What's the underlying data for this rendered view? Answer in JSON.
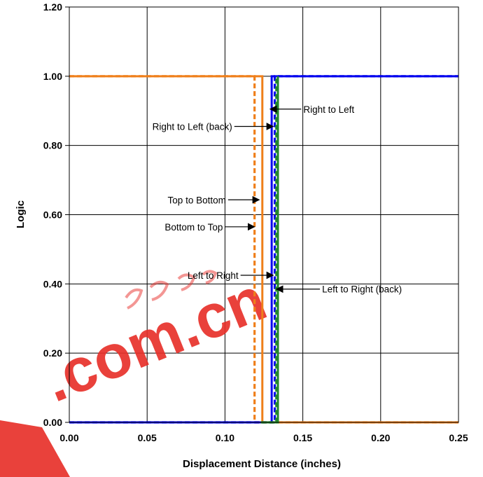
{
  "chart_data": {
    "type": "line",
    "title": "",
    "xlabel": "Displacement Distance (inches)",
    "ylabel": "Logic",
    "xlim": [
      0,
      0.25
    ],
    "ylim": [
      0,
      1.2
    ],
    "x_ticks": [
      "0.00",
      "0.05",
      "0.10",
      "0.15",
      "0.20",
      "0.25"
    ],
    "y_ticks": [
      "0.00",
      "0.20",
      "0.40",
      "0.60",
      "0.80",
      "1.00",
      "1.20"
    ],
    "grid": true,
    "legend": "none",
    "series": [
      {
        "color": "#ef7f1a",
        "dash": "dashed",
        "transition_x": 0.119,
        "x_end": 0.25,
        "falling": true
      },
      {
        "color": "#ef7f1a",
        "dash": "solid",
        "transition_x": 0.124,
        "x_end": 0.25,
        "falling": true
      },
      {
        "color": "#0000ee",
        "dash": "solid",
        "transition_x": 0.13,
        "x_start": 0.0,
        "x_end": 0.25,
        "falling": false
      },
      {
        "color": "#0000ee",
        "dash": "dashed",
        "transition_x": 0.132,
        "x_start": 0.0,
        "x_end": 0.25,
        "falling": false
      },
      {
        "color": "#22882a",
        "dash": "dashed",
        "transition_x": 0.133,
        "x_start": 0.123,
        "x_end": 0.133,
        "falling": false
      },
      {
        "color": "#22882a",
        "dash": "solid",
        "transition_x": 0.134,
        "x_start": 0.123,
        "x_end": 0.134,
        "falling": false
      }
    ],
    "annotations": [
      {
        "text": "Right to Left",
        "side": "right",
        "arrow_x": 0.129,
        "arrow_y": 0.905,
        "label_x": 0.149,
        "label_y": 0.905
      },
      {
        "text": "Right to Left (back)",
        "side": "left",
        "arrow_x": 0.131,
        "arrow_y": 0.855,
        "label_x": 0.106,
        "label_y": 0.855
      },
      {
        "text": "Top to Bottom",
        "side": "left",
        "arrow_x": 0.122,
        "arrow_y": 0.643,
        "label_x": 0.102,
        "label_y": 0.643
      },
      {
        "text": "Bottom to Top",
        "side": "left",
        "arrow_x": 0.119,
        "arrow_y": 0.565,
        "label_x": 0.1,
        "label_y": 0.565
      },
      {
        "text": "Left to Right",
        "side": "left",
        "arrow_x": 0.131,
        "arrow_y": 0.425,
        "label_x": 0.11,
        "label_y": 0.425
      },
      {
        "text": "Left to Right (back)",
        "side": "right",
        "arrow_x": 0.133,
        "arrow_y": 0.385,
        "label_x": 0.161,
        "label_y": 0.385
      }
    ]
  },
  "watermark": {
    "text": ".com.cn",
    "color": "#e8302a"
  }
}
